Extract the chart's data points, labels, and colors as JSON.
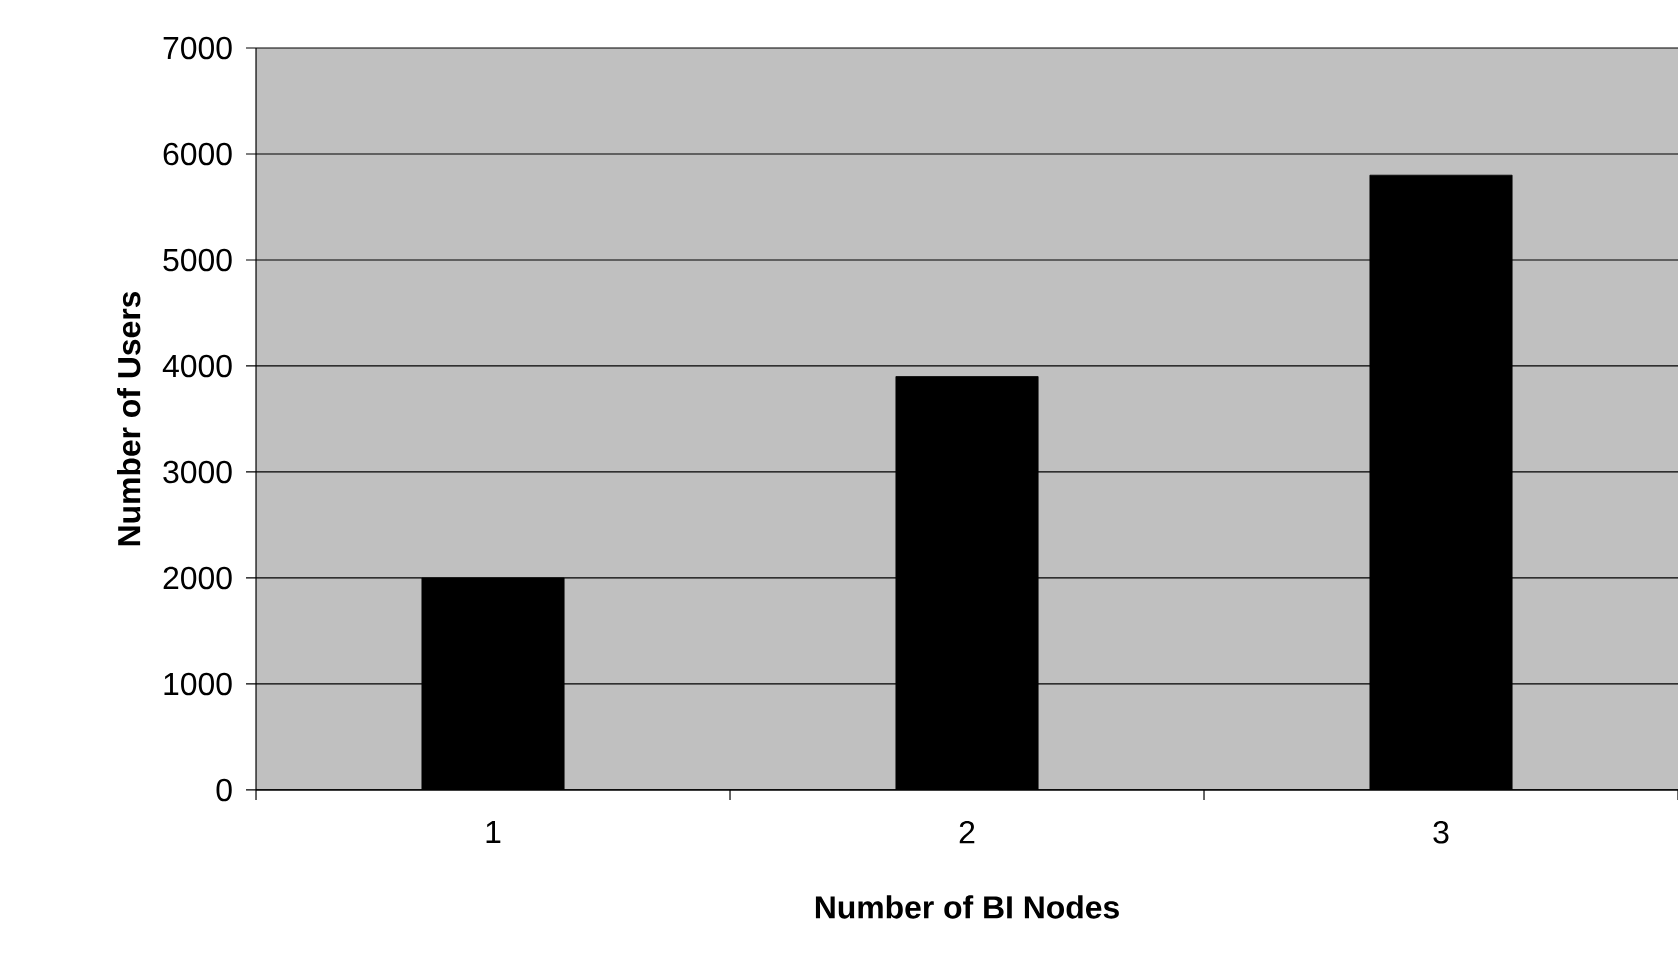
{
  "chart_data": {
    "type": "bar",
    "xlabel": "Number of BI Nodes",
    "ylabel": "Number of Users",
    "categories": [
      "1",
      "2",
      "3"
    ],
    "values": [
      2000,
      3900,
      5800
    ],
    "color": "#000000",
    "ylim": [
      0,
      7000
    ],
    "yticks": [
      0,
      1000,
      2000,
      3000,
      4000,
      5000,
      6000,
      7000
    ],
    "grid": "y"
  }
}
